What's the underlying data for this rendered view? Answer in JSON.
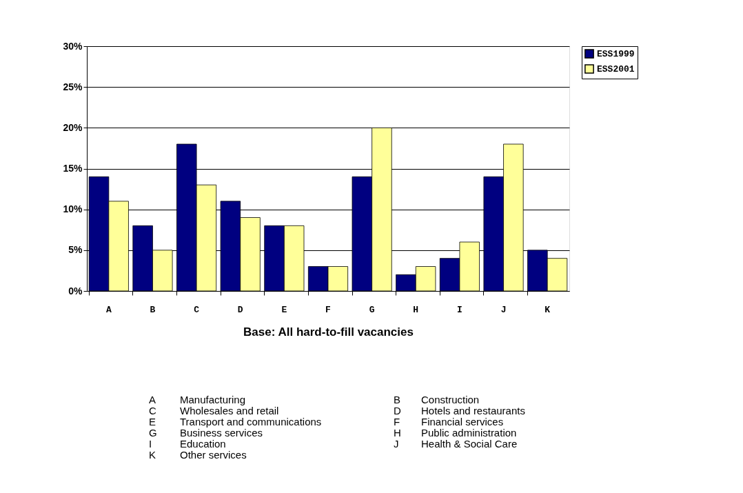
{
  "chart_data": {
    "type": "bar",
    "xlabel": "Base: All hard-to-fill vacancies",
    "categories": [
      "A",
      "B",
      "C",
      "D",
      "E",
      "F",
      "G",
      "H",
      "I",
      "J",
      "K"
    ],
    "series": [
      {
        "name": "ESS1999",
        "color": "#000080",
        "values": [
          14,
          8,
          18,
          11,
          8,
          3,
          14,
          2,
          4,
          14,
          5
        ]
      },
      {
        "name": "ESS2001",
        "color": "#ffff99",
        "values": [
          11,
          5,
          13,
          9,
          8,
          3,
          20,
          3,
          6,
          18,
          4
        ]
      }
    ],
    "ylim": [
      0,
      30
    ],
    "yticks": [
      {
        "value": 0,
        "label": "0%"
      },
      {
        "value": 5,
        "label": "5%"
      },
      {
        "value": 10,
        "label": "10%"
      },
      {
        "value": 15,
        "label": "15%"
      },
      {
        "value": 20,
        "label": "20%"
      },
      {
        "value": 25,
        "label": "25%"
      },
      {
        "value": 30,
        "label": "30%"
      }
    ],
    "grid": "y",
    "legend": "right",
    "annotations": [
      "A Manufacturing",
      "B Construction",
      "C Wholesales and retail",
      "D Hotels and restaurants",
      "E Transport and communications",
      "F Financial services",
      "G Business services",
      "H Public administration",
      "I Education",
      "J Health & Social Care",
      "K Other services"
    ]
  }
}
